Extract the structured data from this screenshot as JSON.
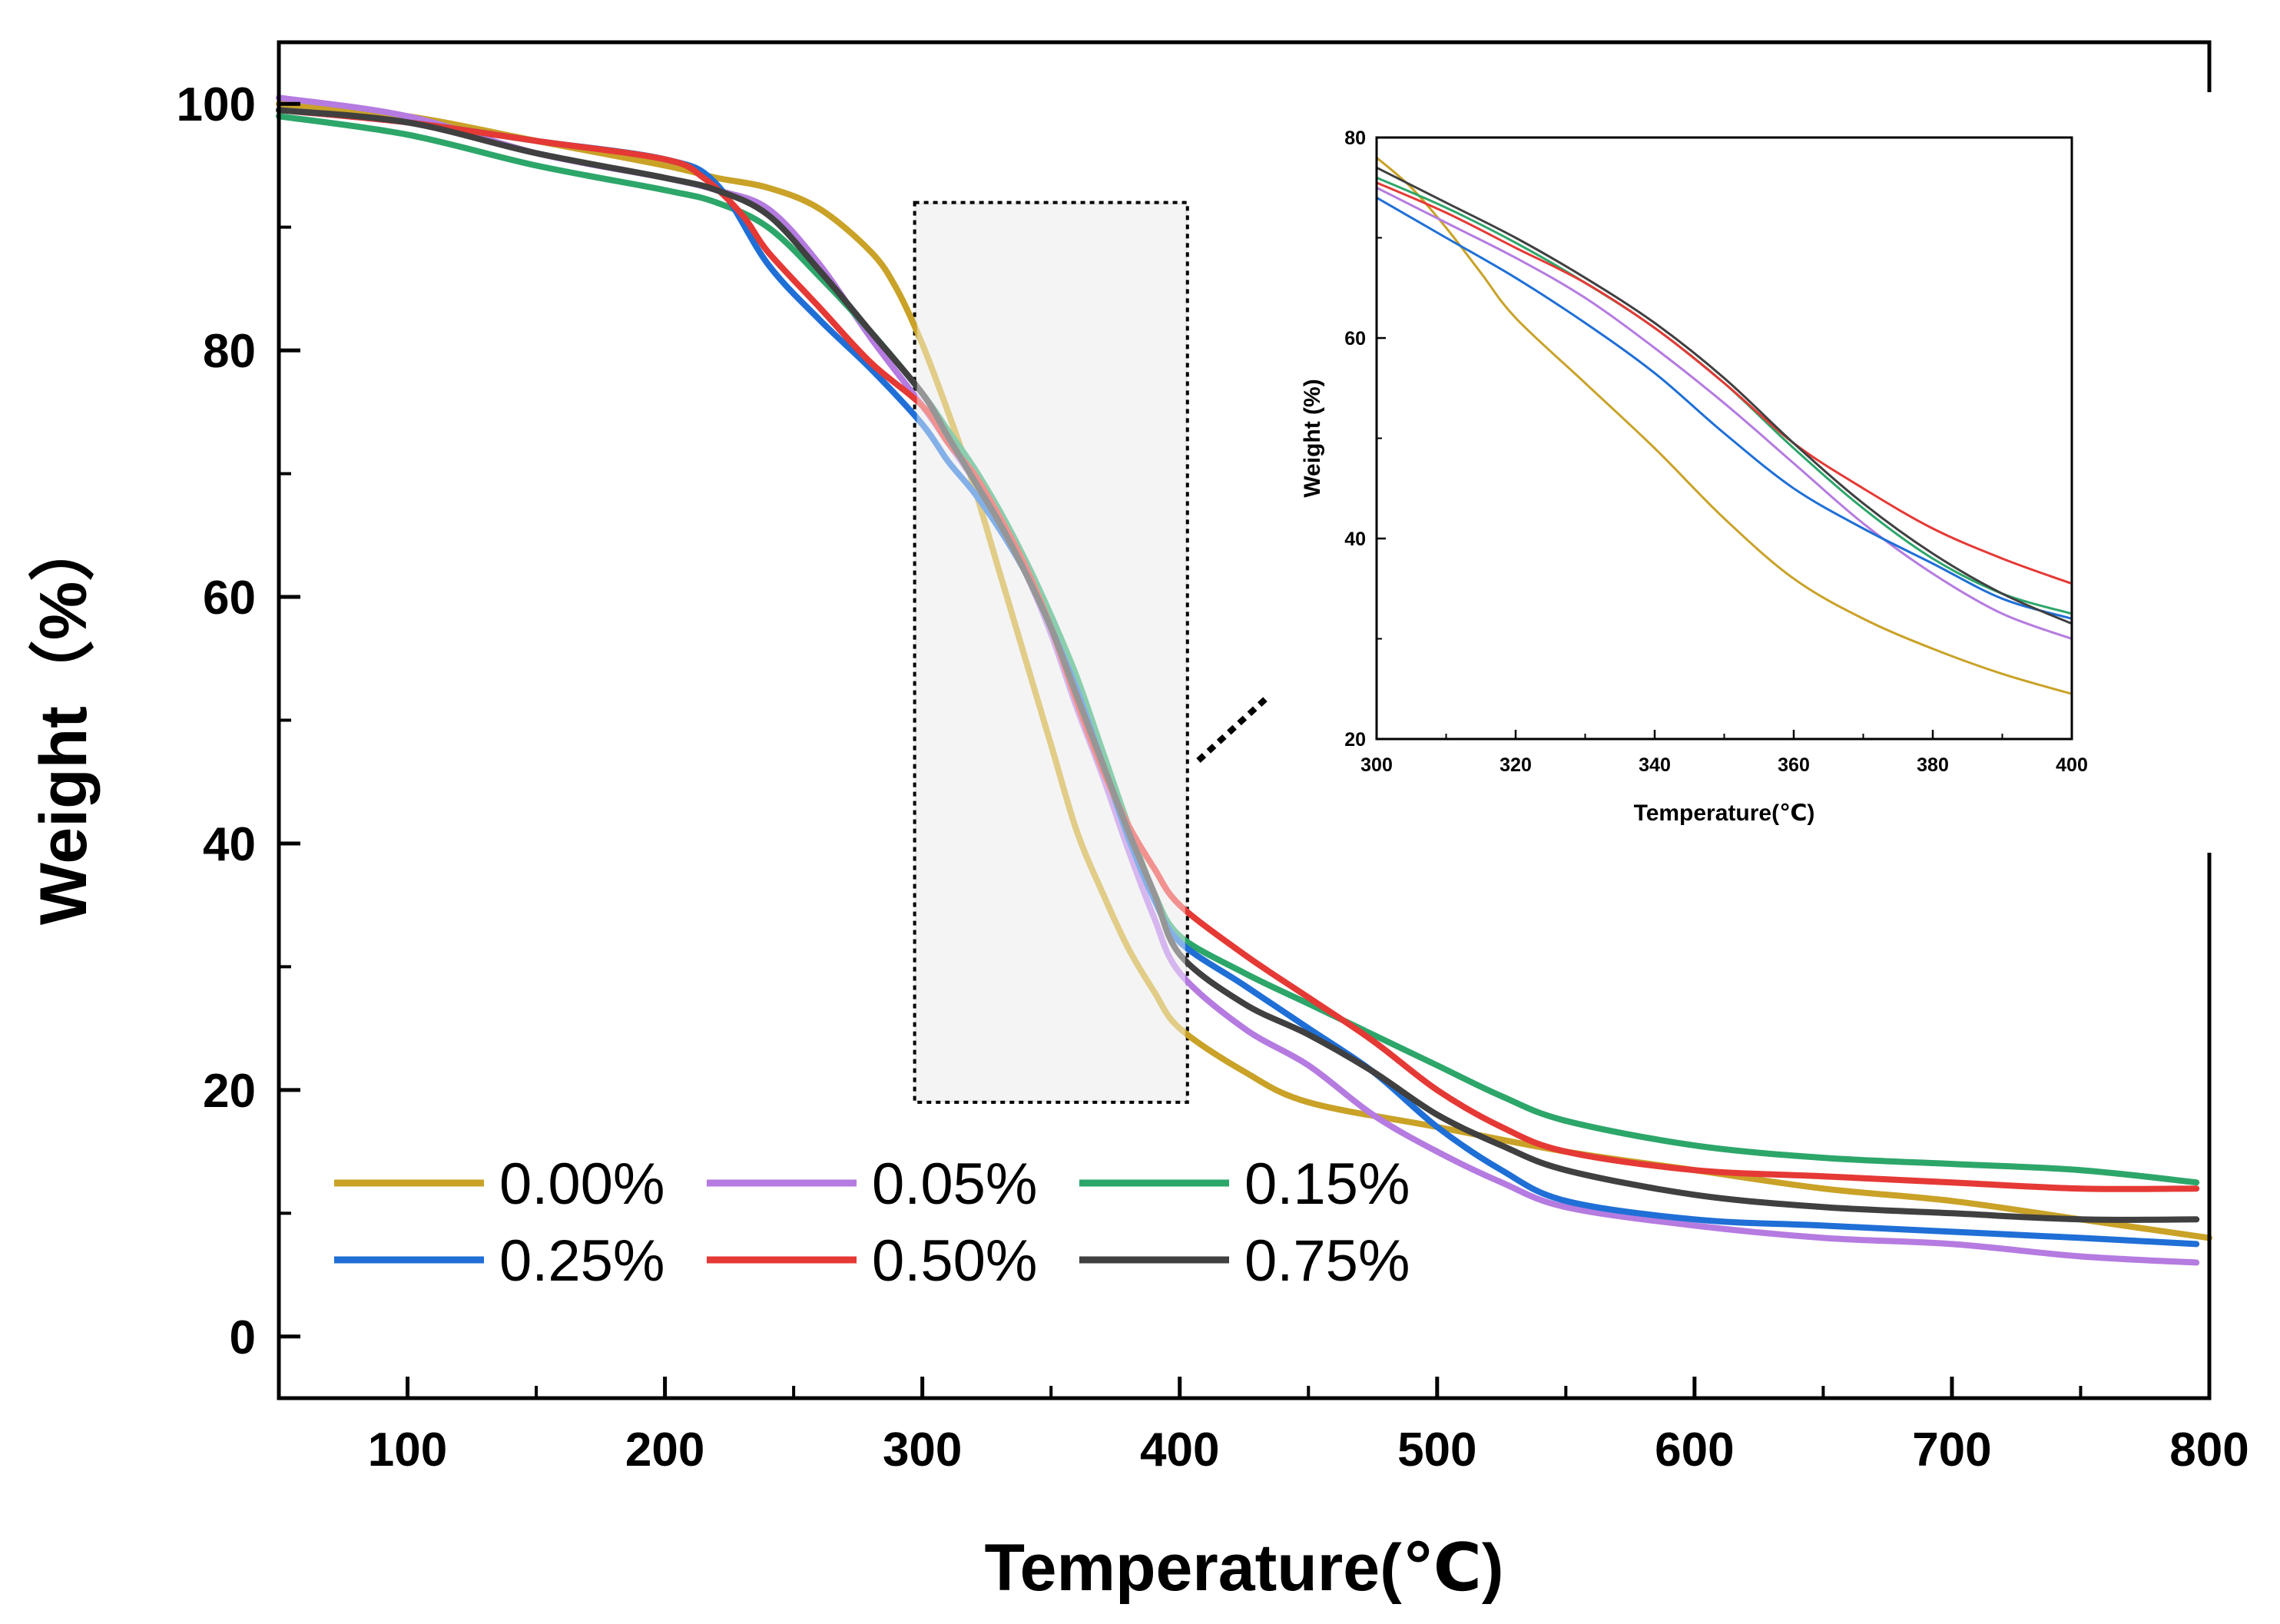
{
  "chart_data": [
    {
      "name": "main",
      "type": "line",
      "title": "",
      "xlabel": "Temperature(℃)",
      "ylabel": "Weight（%）",
      "xlim": [
        50,
        800
      ],
      "ylim": [
        -5,
        105
      ],
      "xticks": [
        100,
        200,
        300,
        400,
        500,
        600,
        700,
        800
      ],
      "yticks": [
        0,
        20,
        40,
        60,
        80,
        100
      ],
      "legend": {
        "position": "bottom-left",
        "columns": 3
      },
      "highlight_region": {
        "x": [
          297,
          403
        ],
        "y": [
          19,
          92
        ]
      },
      "series": [
        {
          "name": "0.00%",
          "color": "#C9A227",
          "x": [
            50,
            100,
            150,
            200,
            220,
            240,
            260,
            280,
            290,
            300,
            310,
            320,
            330,
            340,
            350,
            360,
            370,
            380,
            390,
            400,
            425,
            450,
            500,
            550,
            600,
            650,
            700,
            750,
            800
          ],
          "y": [
            100,
            99,
            97,
            95,
            94,
            93.2,
            91.5,
            88,
            85,
            80.5,
            75,
            69,
            62,
            55,
            48,
            41,
            36,
            31.5,
            28,
            25,
            21.5,
            19,
            17,
            15,
            13.5,
            12,
            11,
            9.5,
            8
          ]
        },
        {
          "name": "0.05%",
          "color": "#B57BE0",
          "x": [
            50,
            100,
            150,
            200,
            220,
            240,
            260,
            280,
            300,
            310,
            320,
            330,
            340,
            350,
            360,
            370,
            380,
            390,
            400,
            425,
            450,
            475,
            500,
            525,
            550,
            600,
            650,
            700,
            750,
            795
          ],
          "y": [
            100.5,
            99,
            96,
            94,
            93,
            91.5,
            87,
            81,
            75.5,
            72.5,
            69.5,
            66,
            62,
            57,
            51,
            45.5,
            39.5,
            34,
            29.5,
            25,
            22,
            18,
            15,
            12.5,
            10.5,
            9,
            8,
            7.5,
            6.5,
            6
          ]
        },
        {
          "name": "0.15%",
          "color": "#2DA66A",
          "x": [
            50,
            100,
            150,
            200,
            220,
            240,
            260,
            280,
            300,
            310,
            320,
            330,
            340,
            350,
            360,
            370,
            380,
            390,
            400,
            425,
            450,
            475,
            500,
            525,
            550,
            600,
            650,
            700,
            750,
            795
          ],
          "y": [
            99,
            97.5,
            95,
            93,
            92,
            90,
            86,
            81.5,
            76.5,
            73.5,
            70.5,
            67,
            63,
            58.5,
            53.5,
            47.5,
            41.5,
            36,
            32.5,
            29.5,
            27,
            24.5,
            22,
            19.5,
            17.5,
            15.5,
            14.5,
            14,
            13.5,
            12.5
          ]
        },
        {
          "name": "0.25%",
          "color": "#1F6FD6",
          "x": [
            50,
            100,
            150,
            200,
            220,
            240,
            260,
            280,
            300,
            310,
            320,
            330,
            340,
            350,
            360,
            370,
            380,
            390,
            400,
            425,
            450,
            475,
            500,
            525,
            550,
            600,
            650,
            700,
            750,
            795
          ],
          "y": [
            99.5,
            98.5,
            97,
            95.5,
            93.5,
            87,
            82.5,
            78.5,
            74,
            71,
            68.5,
            65.5,
            62,
            57.5,
            52.5,
            46.5,
            40.5,
            35.5,
            32,
            28.5,
            25,
            21.5,
            17,
            13.5,
            11,
            9.5,
            9,
            8.5,
            8,
            7.5
          ]
        },
        {
          "name": "0.50%",
          "color": "#E53935",
          "x": [
            50,
            100,
            150,
            200,
            215,
            230,
            240,
            260,
            280,
            300,
            310,
            320,
            330,
            340,
            350,
            360,
            370,
            380,
            390,
            400,
            425,
            450,
            475,
            500,
            525,
            550,
            600,
            650,
            700,
            750,
            795
          ],
          "y": [
            99.5,
            98.5,
            97,
            95.5,
            94,
            91,
            88,
            83.5,
            79,
            75.5,
            72.5,
            70,
            66.5,
            62.5,
            57.5,
            51.5,
            46,
            41.5,
            38,
            35,
            31,
            27.5,
            24,
            20,
            17,
            15,
            13.5,
            13,
            12.5,
            12,
            12
          ]
        },
        {
          "name": "0.75%",
          "color": "#404040",
          "x": [
            50,
            100,
            150,
            200,
            220,
            240,
            260,
            280,
            300,
            310,
            320,
            330,
            340,
            350,
            360,
            370,
            380,
            390,
            400,
            425,
            450,
            475,
            500,
            525,
            550,
            600,
            650,
            700,
            750,
            795
          ],
          "y": [
            99.5,
            98.5,
            96,
            94,
            93,
            91,
            86.5,
            81.5,
            76.5,
            73,
            69.5,
            66,
            62,
            57.5,
            52,
            46.5,
            41,
            36,
            31,
            27,
            24.5,
            21.5,
            18,
            15.5,
            13.5,
            11.5,
            10.5,
            10,
            9.5,
            9.5
          ]
        }
      ]
    },
    {
      "name": "inset",
      "type": "line",
      "title": "",
      "xlabel": "Temperature(℃)",
      "ylabel": "Weight (%)",
      "xlim": [
        300,
        400
      ],
      "ylim": [
        20,
        80
      ],
      "xticks": [
        300,
        320,
        340,
        360,
        380,
        400
      ],
      "yticks": [
        20,
        40,
        60,
        80
      ],
      "series": [
        {
          "name": "0.00%",
          "color": "#C9A227",
          "x": [
            300,
            305,
            310,
            315,
            320,
            330,
            340,
            350,
            360,
            370,
            380,
            390,
            400
          ],
          "y": [
            78,
            75,
            71,
            66.5,
            62,
            55.5,
            49,
            42,
            36,
            32,
            29,
            26.5,
            24.5
          ]
        },
        {
          "name": "0.05%",
          "color": "#B57BE0",
          "x": [
            300,
            310,
            320,
            330,
            340,
            350,
            360,
            370,
            380,
            390,
            400
          ],
          "y": [
            75,
            71.5,
            68,
            64,
            59,
            53.5,
            47.5,
            41.5,
            36.5,
            32.5,
            30
          ]
        },
        {
          "name": "0.15%",
          "color": "#2DA66A",
          "x": [
            300,
            310,
            320,
            330,
            340,
            350,
            360,
            370,
            380,
            390,
            400
          ],
          "y": [
            76,
            73,
            69.5,
            65.5,
            61,
            55.5,
            49,
            43,
            38,
            34.5,
            32.5
          ]
        },
        {
          "name": "0.25%",
          "color": "#1F6FD6",
          "x": [
            300,
            310,
            320,
            330,
            340,
            350,
            360,
            370,
            380,
            390,
            400
          ],
          "y": [
            74,
            70,
            66,
            61.5,
            56.5,
            50.5,
            45,
            41,
            37.5,
            34,
            32
          ]
        },
        {
          "name": "0.50%",
          "color": "#E53935",
          "x": [
            300,
            310,
            320,
            330,
            340,
            350,
            360,
            370,
            380,
            390,
            400
          ],
          "y": [
            75.5,
            72.5,
            69,
            65.5,
            61,
            55.5,
            49.5,
            45,
            41,
            38,
            35.5
          ]
        },
        {
          "name": "0.75%",
          "color": "#404040",
          "x": [
            300,
            310,
            320,
            330,
            340,
            350,
            360,
            370,
            380,
            390,
            400
          ],
          "y": [
            77,
            73.5,
            70,
            66,
            61.5,
            56,
            49.5,
            43.5,
            38.5,
            34.5,
            31.5
          ]
        }
      ]
    }
  ]
}
